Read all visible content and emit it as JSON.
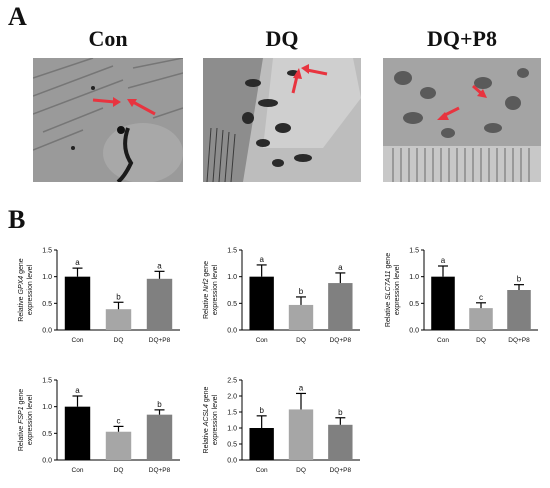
{
  "panel_a": {
    "letter": "A",
    "images": [
      {
        "title": "Con"
      },
      {
        "title": "DQ"
      },
      {
        "title": "DQ+P8"
      }
    ]
  },
  "panel_b": {
    "letter": "B"
  },
  "colors": {
    "con": "#000000",
    "dq": "#a6a6a6",
    "dqp8": "#808080",
    "arrow": "#e8343f"
  },
  "chart_data": [
    {
      "type": "bar",
      "gene": "GPX4",
      "ylabel_prefix": "Relative ",
      "ylabel_suffix": " gene",
      "ylabel_line2": "expression level",
      "categories": [
        "Con",
        "DQ",
        "DQ+P8"
      ],
      "values": [
        1.0,
        0.39,
        0.96
      ],
      "errors": [
        0.16,
        0.13,
        0.14
      ],
      "letters": [
        "a",
        "b",
        "a"
      ],
      "ylim": [
        0,
        1.5
      ],
      "yticks": [
        "0.0",
        "0.5",
        "1.0",
        "1.5"
      ]
    },
    {
      "type": "bar",
      "gene": "Nrf2",
      "ylabel_prefix": "Relative ",
      "ylabel_suffix": " gene",
      "ylabel_line2": "expression level",
      "categories": [
        "Con",
        "DQ",
        "DQ+P8"
      ],
      "values": [
        1.0,
        0.47,
        0.88
      ],
      "errors": [
        0.22,
        0.15,
        0.19
      ],
      "letters": [
        "a",
        "b",
        "a"
      ],
      "ylim": [
        0,
        1.5
      ],
      "yticks": [
        "0.0",
        "0.5",
        "1.0",
        "1.5"
      ]
    },
    {
      "type": "bar",
      "gene": "SLC7A11",
      "ylabel_prefix": "Relative ",
      "ylabel_suffix": " gene",
      "ylabel_line2": "expression level",
      "categories": [
        "Con",
        "DQ",
        "DQ+P8"
      ],
      "values": [
        1.0,
        0.41,
        0.75
      ],
      "errors": [
        0.2,
        0.1,
        0.1
      ],
      "letters": [
        "a",
        "c",
        "b"
      ],
      "ylim": [
        0,
        1.5
      ],
      "yticks": [
        "0.0",
        "0.5",
        "1.0",
        "1.5"
      ]
    },
    {
      "type": "bar",
      "gene": "FSP1",
      "ylabel_prefix": "Relative ",
      "ylabel_suffix": " gene",
      "ylabel_line2": "expression level",
      "categories": [
        "Con",
        "DQ",
        "DQ+P8"
      ],
      "values": [
        1.0,
        0.53,
        0.85
      ],
      "errors": [
        0.2,
        0.1,
        0.09
      ],
      "letters": [
        "a",
        "c",
        "b"
      ],
      "ylim": [
        0,
        1.5
      ],
      "yticks": [
        "0.0",
        "0.5",
        "1.0",
        "1.5"
      ]
    },
    {
      "type": "bar",
      "gene": "ACSL4",
      "ylabel_prefix": "Relative ",
      "ylabel_suffix": " gene",
      "ylabel_line2": "expression level",
      "categories": [
        "Con",
        "DQ",
        "DQ+P8"
      ],
      "values": [
        1.0,
        1.58,
        1.1
      ],
      "errors": [
        0.38,
        0.5,
        0.22
      ],
      "letters": [
        "b",
        "a",
        "b"
      ],
      "ylim": [
        0,
        2.5
      ],
      "yticks": [
        "0.0",
        "0.5",
        "1.0",
        "1.5",
        "2.0",
        "2.5"
      ]
    }
  ]
}
